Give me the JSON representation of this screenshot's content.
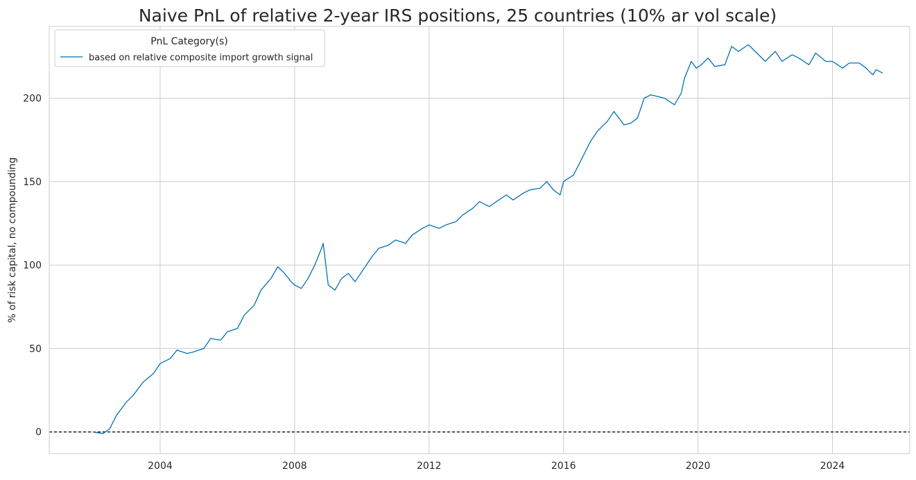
{
  "chart_data": {
    "type": "line",
    "title": "Naive PnL of relative 2-year IRS positions, 25 countries (10% ar vol scale)",
    "xlabel": "",
    "ylabel": "% of risk capital, no compounding",
    "xlim": [
      2000.7,
      2026.3
    ],
    "ylim": [
      -13,
      243
    ],
    "xticks": [
      2004,
      2008,
      2012,
      2016,
      2020,
      2024
    ],
    "xtick_labels": [
      "2004",
      "2008",
      "2012",
      "2016",
      "2020",
      "2024"
    ],
    "yticks": [
      0,
      50,
      100,
      150,
      200
    ],
    "ytick_labels": [
      "0",
      "50",
      "100",
      "150",
      "200"
    ],
    "grid": true,
    "zero_line": {
      "y": 0,
      "style": "dashed",
      "color": "#000000"
    },
    "legend": {
      "title": "PnL Category(s)",
      "placement": "top-left",
      "entries": [
        "based on relative composite import growth signal"
      ]
    },
    "series": [
      {
        "name": "based on relative composite import growth signal",
        "color": "#0072b2",
        "x": [
          2002.0,
          2002.3,
          2002.5,
          2002.7,
          2003.0,
          2003.2,
          2003.5,
          2003.8,
          2004.0,
          2004.3,
          2004.5,
          2004.8,
          2005.0,
          2005.3,
          2005.5,
          2005.8,
          2006.0,
          2006.3,
          2006.5,
          2006.8,
          2007.0,
          2007.3,
          2007.5,
          2007.7,
          2007.9,
          2008.0,
          2008.2,
          2008.4,
          2008.6,
          2008.8,
          2008.85,
          2009.0,
          2009.2,
          2009.4,
          2009.6,
          2009.8,
          2010.0,
          2010.3,
          2010.5,
          2010.8,
          2011.0,
          2011.3,
          2011.5,
          2011.8,
          2012.0,
          2012.3,
          2012.5,
          2012.8,
          2013.0,
          2013.3,
          2013.5,
          2013.8,
          2014.0,
          2014.3,
          2014.5,
          2014.8,
          2015.0,
          2015.3,
          2015.5,
          2015.7,
          2015.9,
          2016.0,
          2016.3,
          2016.5,
          2016.8,
          2017.0,
          2017.3,
          2017.5,
          2017.8,
          2018.0,
          2018.2,
          2018.4,
          2018.6,
          2018.8,
          2019.0,
          2019.3,
          2019.5,
          2019.6,
          2019.8,
          2019.95,
          2020.1,
          2020.3,
          2020.5,
          2020.8,
          2021.0,
          2021.2,
          2021.5,
          2021.8,
          2022.0,
          2022.3,
          2022.5,
          2022.8,
          2023.0,
          2023.3,
          2023.5,
          2023.8,
          2024.0,
          2024.3,
          2024.5,
          2024.8,
          2025.0,
          2025.2,
          2025.3,
          2025.5
        ],
        "y": [
          0,
          -1,
          2,
          10,
          18,
          22,
          30,
          35,
          41,
          44,
          49,
          47,
          48,
          50,
          56,
          55,
          60,
          62,
          70,
          76,
          85,
          92,
          99,
          95,
          90,
          88,
          86,
          92,
          100,
          110,
          113,
          88,
          85,
          92,
          95,
          90,
          96,
          105,
          110,
          112,
          115,
          113,
          118,
          122,
          124,
          122,
          124,
          126,
          130,
          134,
          138,
          135,
          138,
          142,
          139,
          143,
          145,
          146,
          150,
          145,
          142,
          150,
          154,
          162,
          174,
          180,
          186,
          192,
          184,
          185,
          188,
          200,
          202,
          201,
          200,
          196,
          203,
          212,
          222,
          218,
          220,
          224,
          219,
          220,
          231,
          228,
          232,
          226,
          222,
          228,
          222,
          226,
          224,
          220,
          227,
          222,
          222,
          218,
          221,
          221,
          218,
          214,
          217,
          215
        ]
      }
    ]
  }
}
